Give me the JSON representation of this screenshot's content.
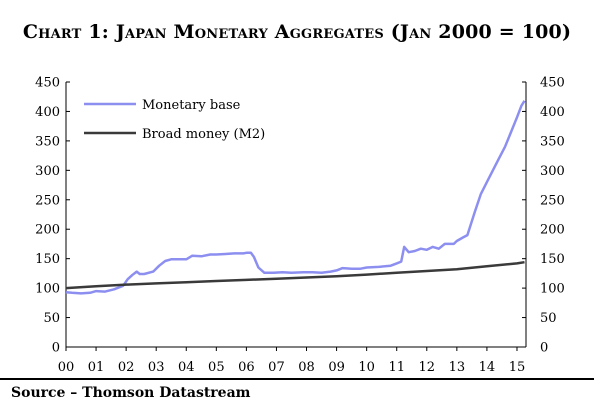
{
  "title": "Chart 1: Japan Monetary Aggregates (Jan 2000 = 100)",
  "source": "Source – Thomson Datastream",
  "chart_data": {
    "type": "line",
    "title": "Chart 1: Japan Monetary Aggregates (Jan 2000 = 100)",
    "xlabel": "",
    "ylabel": "",
    "x_ticks": [
      "00",
      "01",
      "02",
      "03",
      "04",
      "05",
      "06",
      "07",
      "08",
      "09",
      "10",
      "11",
      "12",
      "13",
      "14",
      "15"
    ],
    "xlim": [
      2000,
      2015.3
    ],
    "ylim": [
      0,
      450
    ],
    "y_ticks": [
      0,
      50,
      100,
      150,
      200,
      250,
      300,
      350,
      400,
      450
    ],
    "secondary_y_axis": true,
    "grid": false,
    "legend_position": "top-left",
    "series": [
      {
        "name": "Monetary base",
        "color": "#8c8ff0",
        "x": [
          2000.0,
          2000.2,
          2000.5,
          2000.8,
          2001.0,
          2001.3,
          2001.6,
          2001.9,
          2002.05,
          2002.2,
          2002.35,
          2002.45,
          2002.6,
          2002.9,
          2003.1,
          2003.3,
          2003.5,
          2003.8,
          2004.0,
          2004.2,
          2004.5,
          2004.8,
          2005.0,
          2005.3,
          2005.6,
          2005.9,
          2006.0,
          2006.15,
          2006.25,
          2006.4,
          2006.6,
          2006.9,
          2007.2,
          2007.5,
          2007.9,
          2008.2,
          2008.5,
          2008.8,
          2009.0,
          2009.2,
          2009.5,
          2009.8,
          2010.0,
          2010.4,
          2010.8,
          2011.0,
          2011.15,
          2011.25,
          2011.4,
          2011.6,
          2011.8,
          2012.0,
          2012.2,
          2012.4,
          2012.6,
          2012.9,
          2013.0,
          2013.2,
          2013.35,
          2013.6,
          2013.8,
          2014.0,
          2014.2,
          2014.4,
          2014.6,
          2014.8,
          2015.0,
          2015.15,
          2015.25
        ],
        "values": [
          93,
          92,
          91,
          92,
          95,
          94,
          98,
          104,
          115,
          122,
          128,
          124,
          124,
          128,
          138,
          146,
          149,
          149,
          149,
          155,
          154,
          157,
          157,
          158,
          159,
          159,
          160,
          160,
          153,
          135,
          126,
          126,
          127,
          126,
          127,
          127,
          126,
          128,
          130,
          134,
          133,
          133,
          135,
          136,
          138,
          142,
          145,
          170,
          161,
          163,
          167,
          165,
          170,
          167,
          175,
          175,
          180,
          186,
          190,
          230,
          260,
          280,
          300,
          320,
          340,
          365,
          390,
          410,
          418
        ]
      },
      {
        "name": "Broad money (M2)",
        "color": "#3a3a3a",
        "x": [
          2000,
          2001,
          2002,
          2003,
          2004,
          2005,
          2006,
          2007,
          2008,
          2009,
          2010,
          2011,
          2012,
          2013,
          2014,
          2015,
          2015.25
        ],
        "values": [
          100,
          103,
          106,
          108,
          110,
          112,
          114,
          116,
          118,
          120,
          123,
          126,
          129,
          132,
          137,
          142,
          144
        ]
      }
    ]
  }
}
